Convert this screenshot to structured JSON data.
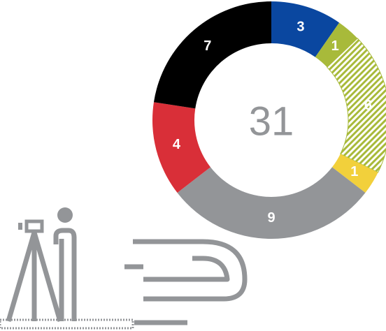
{
  "chart_data": {
    "type": "donut",
    "values": [
      3,
      1,
      6,
      1,
      9,
      4,
      7
    ],
    "colors": [
      "#0a47a0",
      "#a8ba3a",
      "#a8ba3a",
      "#f2d03b",
      "#939598",
      "#d92f38",
      "#000000"
    ],
    "hatched": [
      false,
      false,
      true,
      false,
      false,
      false,
      false
    ],
    "total": 31
  }
}
